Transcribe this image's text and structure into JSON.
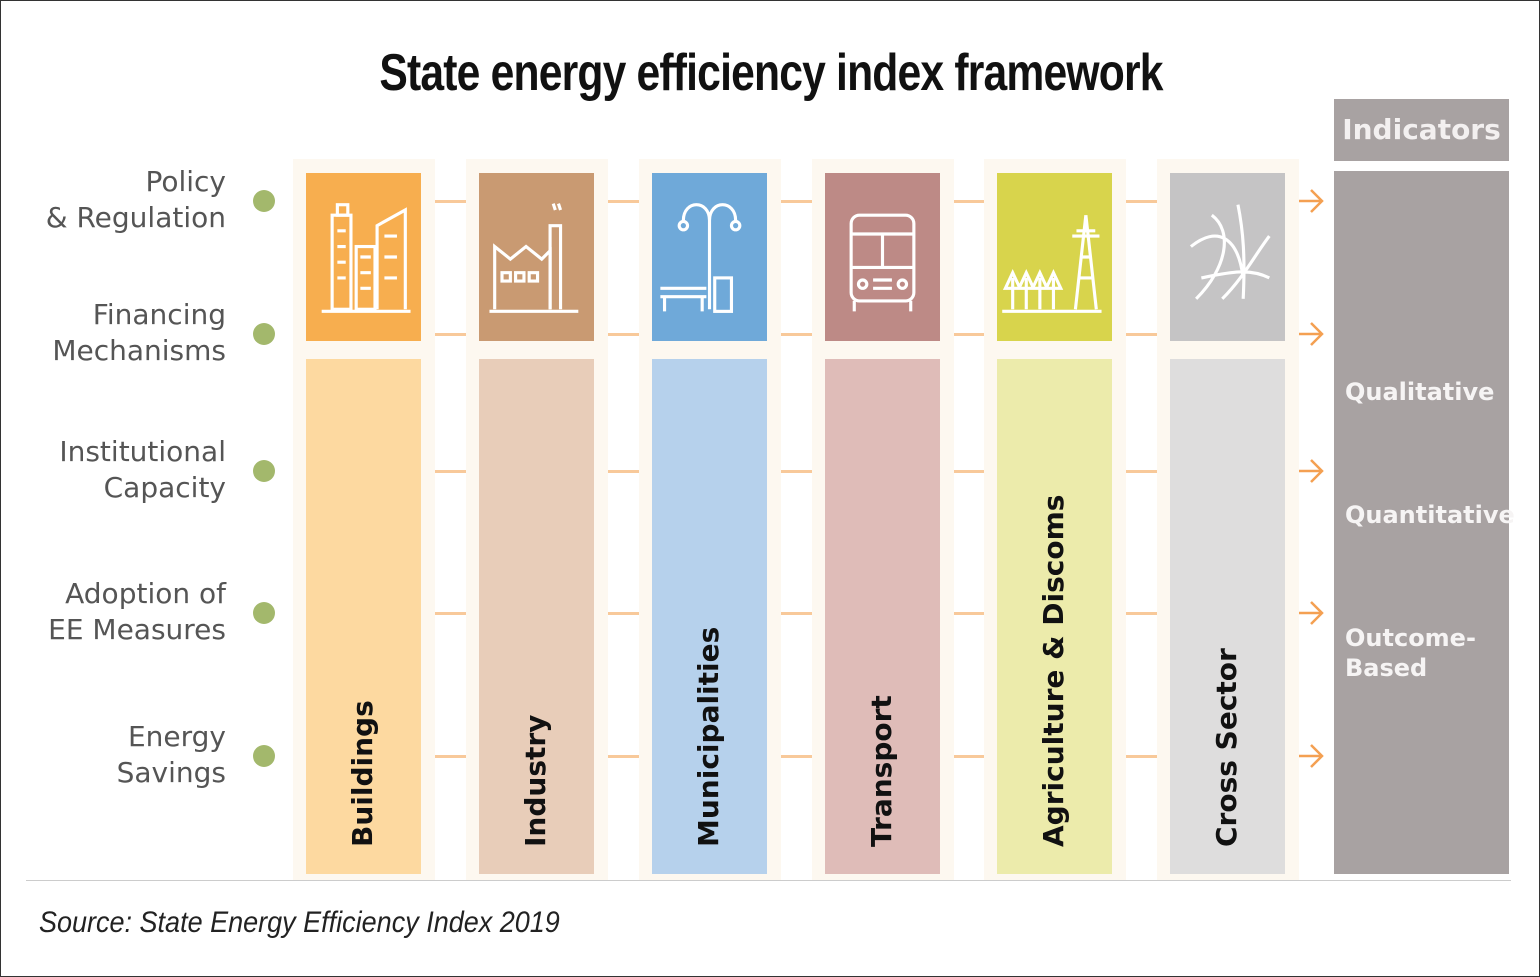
{
  "title": "State energy efficiency index framework",
  "rows": [
    "Policy\n& Regulation",
    "Financing\nMechanisms",
    "Institutional\nCapacity",
    "Adoption of\nEE Measures",
    "Energy\nSavings"
  ],
  "sectors": [
    {
      "label": "Buildings",
      "icon": "buildings-icon",
      "color": "#f7ae4f",
      "light": "#fdd9a0"
    },
    {
      "label": "Industry",
      "icon": "factory-icon",
      "color": "#c99a72",
      "light": "#e8cdb9"
    },
    {
      "label": "Municipalities",
      "icon": "streetlight-bench-icon",
      "color": "#6fa9d9",
      "light": "#b6d1ec"
    },
    {
      "label": "Transport",
      "icon": "bus-icon",
      "color": "#bd8a86",
      "light": "#dfbcb8"
    },
    {
      "label": "Agriculture & Discoms",
      "icon": "trees-pylon-icon",
      "color": "#d8d44c",
      "light": "#ecebab"
    },
    {
      "label": "Cross Sector",
      "icon": "network-icon",
      "color": "#c5c4c5",
      "light": "#dedddd"
    }
  ],
  "indicators": {
    "header": "Indicators",
    "items": [
      "Qualitative",
      "Quantitative",
      "Outcome-\nBased"
    ]
  },
  "source": "Source: State Energy Efficiency Index 2019"
}
